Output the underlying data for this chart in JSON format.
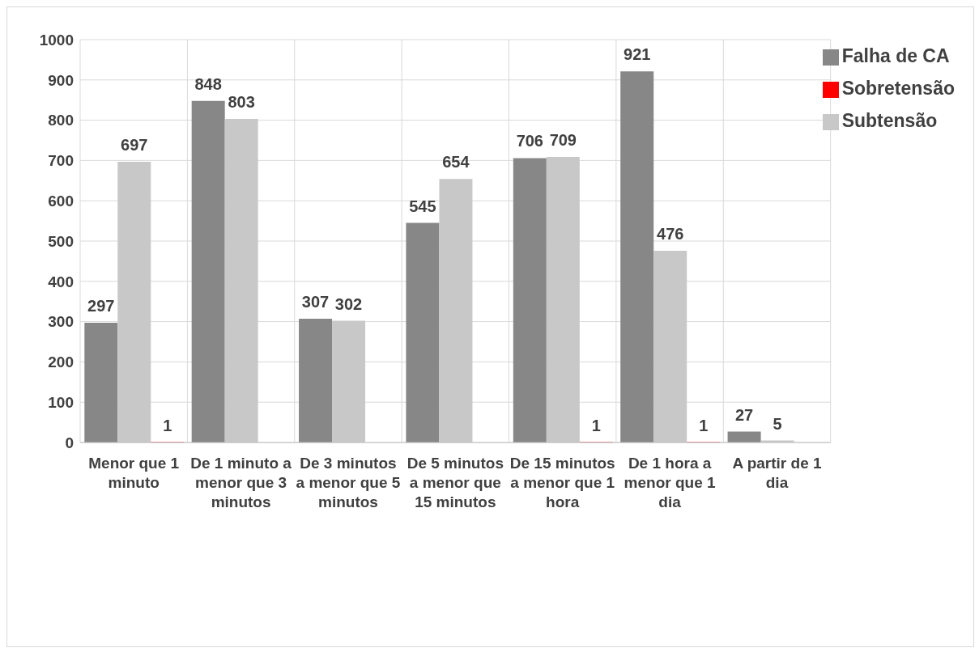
{
  "chart_data": {
    "type": "bar",
    "categories": [
      "Menor que 1 minuto",
      "De 1 minuto a menor que 3 minutos",
      "De 3 minutos a menor que 5 minutos",
      "De 5 minutos a menor que 15 minutos",
      "De 15 minutos a menor que 1 hora",
      "De 1 hora a menor que 1 dia",
      "A partir de 1 dia"
    ],
    "series": [
      {
        "name": "Falha de CA",
        "color": "#878787",
        "values": [
          297,
          848,
          307,
          545,
          706,
          921,
          27
        ],
        "value_labels": [
          "297",
          "848",
          "307",
          "545",
          "706",
          "921",
          "27"
        ]
      },
      {
        "name": "Subtensão",
        "color": "#c8c8c8",
        "values": [
          697,
          803,
          302,
          654,
          709,
          476,
          5
        ],
        "value_labels": [
          "697",
          "803",
          "302",
          "654",
          "709",
          "476",
          "5"
        ]
      },
      {
        "name": "Sobretensão",
        "color": "#ff0000",
        "values": [
          1,
          null,
          null,
          null,
          1,
          1,
          null
        ],
        "value_labels": [
          "1",
          null,
          null,
          null,
          "1",
          "1",
          null
        ]
      }
    ],
    "ylim": [
      0,
      1000
    ],
    "yticks": [
      0,
      100,
      200,
      300,
      400,
      500,
      600,
      700,
      800,
      900,
      1000
    ],
    "grid": true,
    "legend": "top right"
  }
}
